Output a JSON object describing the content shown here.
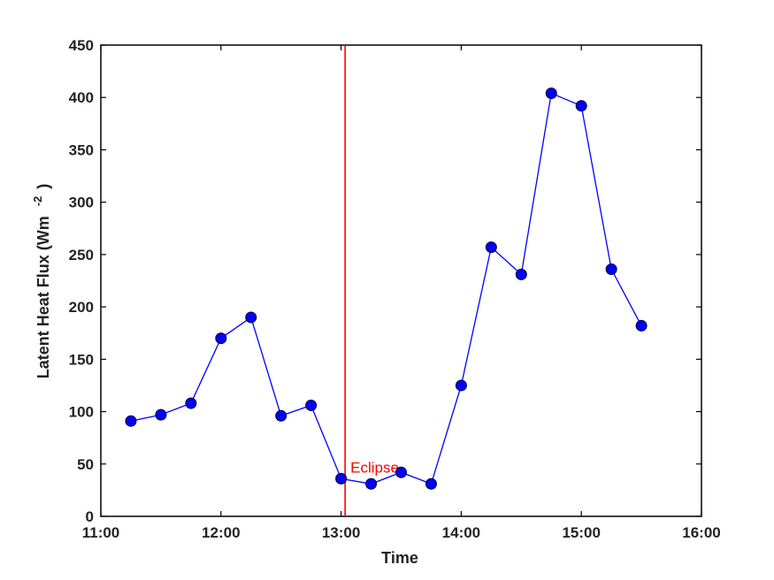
{
  "chart_data": {
    "type": "line",
    "title": "",
    "xlabel": "Time",
    "ylabel": "Latent Heat Flux (Wm",
    "ylabel_superscript": "-2",
    "ylabel_close": ")",
    "xlim": [
      "11:00",
      "16:00"
    ],
    "ylim": [
      0,
      450
    ],
    "grid": false,
    "x_ticks": [
      "11:00",
      "12:00",
      "13:00",
      "14:00",
      "15:00",
      "16:00"
    ],
    "y_ticks": [
      "0",
      "50",
      "100",
      "150",
      "200",
      "250",
      "300",
      "350",
      "400",
      "450"
    ],
    "series": [
      {
        "color": "#0000ff",
        "marker_color": "#0000ff",
        "x": [
          "11:15",
          "11:30",
          "11:45",
          "12:00",
          "12:15",
          "12:30",
          "12:45",
          "13:00",
          "13:15",
          "13:30",
          "13:45",
          "14:00",
          "14:15",
          "14:30",
          "14:45",
          "15:00",
          "15:15",
          "15:30"
        ],
        "y": [
          91,
          97,
          108,
          170,
          190,
          96,
          106,
          36,
          31,
          42,
          31,
          125,
          257,
          231,
          404,
          392,
          236,
          182
        ]
      }
    ],
    "annotations": [
      {
        "type": "vline",
        "x": "13:02",
        "color": "#ff0000",
        "label": "Eclipse"
      }
    ]
  }
}
